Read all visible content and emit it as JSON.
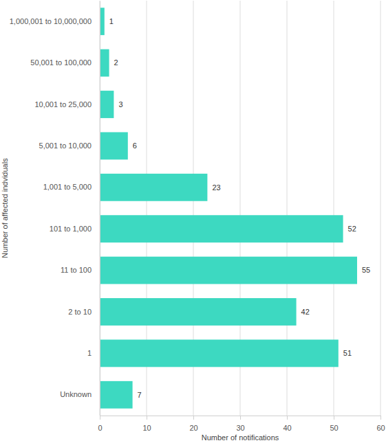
{
  "chart_data": {
    "type": "bar",
    "orientation": "horizontal",
    "x_label": "Number of notifications",
    "y_label": "Number of affected indviduals",
    "categories": [
      "1,000,001 to 10,000,000",
      "50,001 to 100,000",
      "10,001 to 25,000",
      "5,001 to 10,000",
      "1,001 to 5,000",
      "101 to 1,000",
      "11 to 100",
      "2 to 10",
      "1",
      "Unknown"
    ],
    "values": [
      1,
      2,
      3,
      6,
      23,
      52,
      55,
      42,
      51,
      7
    ],
    "color": "#3dd9c1",
    "xlim": [
      0,
      60
    ],
    "xticks": [
      0,
      10,
      20,
      30,
      40,
      50,
      60
    ],
    "grid": true,
    "data_labels": true
  }
}
